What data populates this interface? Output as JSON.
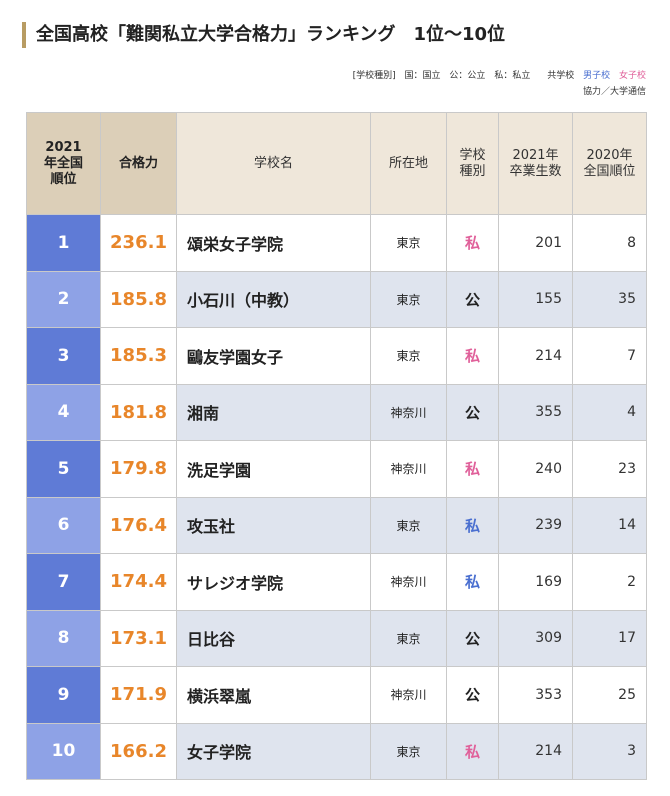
{
  "title": "全国高校「難関私立大学合格力」ランキング　1位〜10位",
  "legend": {
    "school_type_label": "[学校種別]",
    "national": "国：国立",
    "public": "公：公立",
    "private": "私：私立",
    "coed": "共学校",
    "boys": "男子校",
    "girls": "女子校"
  },
  "credit": "協力／大学通信",
  "headers": {
    "rank": "2021年全国順位",
    "score": "合格力",
    "name": "学校名",
    "location": "所在地",
    "type": "学校種別",
    "grads": "2021年卒業生数",
    "prev_rank": "2020年全国順位"
  },
  "rows": [
    {
      "rank": "1",
      "score": "236.1",
      "name": "頌栄女子学院",
      "location": "東京",
      "type": "私",
      "category": "girls",
      "grads": "201",
      "prev_rank": "8"
    },
    {
      "rank": "2",
      "score": "185.8",
      "name": "小石川（中教）",
      "location": "東京",
      "type": "公",
      "category": "coed",
      "grads": "155",
      "prev_rank": "35"
    },
    {
      "rank": "3",
      "score": "185.3",
      "name": "鷗友学園女子",
      "location": "東京",
      "type": "私",
      "category": "girls",
      "grads": "214",
      "prev_rank": "7"
    },
    {
      "rank": "4",
      "score": "181.8",
      "name": "湘南",
      "location": "神奈川",
      "type": "公",
      "category": "coed",
      "grads": "355",
      "prev_rank": "4"
    },
    {
      "rank": "5",
      "score": "179.8",
      "name": "洗足学園",
      "location": "神奈川",
      "type": "私",
      "category": "girls",
      "grads": "240",
      "prev_rank": "23"
    },
    {
      "rank": "6",
      "score": "176.4",
      "name": "攻玉社",
      "location": "東京",
      "type": "私",
      "category": "boys",
      "grads": "239",
      "prev_rank": "14"
    },
    {
      "rank": "7",
      "score": "174.4",
      "name": "サレジオ学院",
      "location": "神奈川",
      "type": "私",
      "category": "boys",
      "grads": "169",
      "prev_rank": "2"
    },
    {
      "rank": "8",
      "score": "173.1",
      "name": "日比谷",
      "location": "東京",
      "type": "公",
      "category": "coed",
      "grads": "309",
      "prev_rank": "17"
    },
    {
      "rank": "9",
      "score": "171.9",
      "name": "横浜翠嵐",
      "location": "神奈川",
      "type": "公",
      "category": "coed",
      "grads": "353",
      "prev_rank": "25"
    },
    {
      "rank": "10",
      "score": "166.2",
      "name": "女子学院",
      "location": "東京",
      "type": "私",
      "category": "girls",
      "grads": "214",
      "prev_rank": "3"
    }
  ],
  "colors": {
    "rank_odd": "#5f7bd6",
    "rank_even": "#8ea2e6",
    "score": "#e8862a",
    "boys": "#4a6fd0",
    "girls": "#e0609a",
    "header": "#efe7da",
    "header_dark": "#dccfb8",
    "row_alt": "#dfe4ee"
  }
}
